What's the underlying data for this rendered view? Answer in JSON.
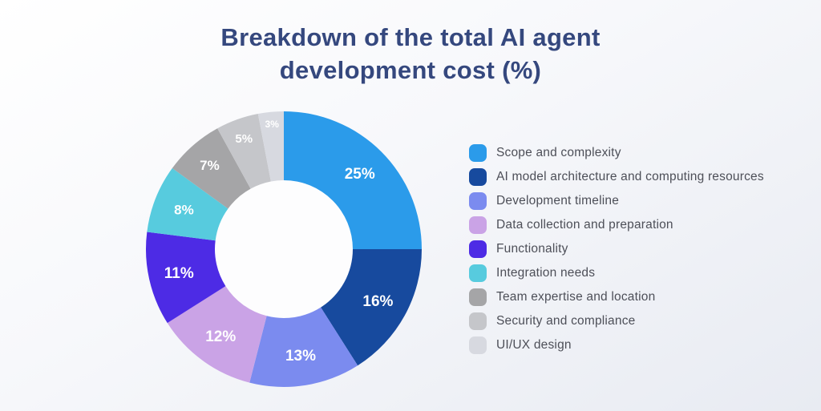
{
  "title": "Breakdown of the total AI agent development cost (%)",
  "chart_data": {
    "type": "pie",
    "subtype": "donut",
    "title": "Breakdown of the total AI agent development cost (%)",
    "unit": "%",
    "direction": "clockwise",
    "start_angle_deg": 0,
    "legend_position": "right",
    "categories": [
      "Scope and complexity",
      "AI model architecture and computing resources",
      "Development timeline",
      "Data collection and preparation",
      "Functionality",
      "Integration needs",
      "Team expertise and location",
      "Security and compliance",
      "UI/UX design"
    ],
    "values": [
      25,
      16,
      13,
      12,
      11,
      8,
      7,
      5,
      3
    ],
    "labels": [
      "25%",
      "16%",
      "13%",
      "12%",
      "11%",
      "8%",
      "7%",
      "5%",
      "3%"
    ],
    "colors": [
      "#2B9BEA",
      "#174A9E",
      "#7B8BEF",
      "#CAA3E6",
      "#4D2BE5",
      "#57CBDE",
      "#A5A5A7",
      "#C5C6CA",
      "#D7D9E0"
    ],
    "label_color": "#FFFFFF",
    "title_color": "#35487E",
    "legend_text_color": "#4D4F58",
    "hole_color": "#FDFDFE"
  }
}
